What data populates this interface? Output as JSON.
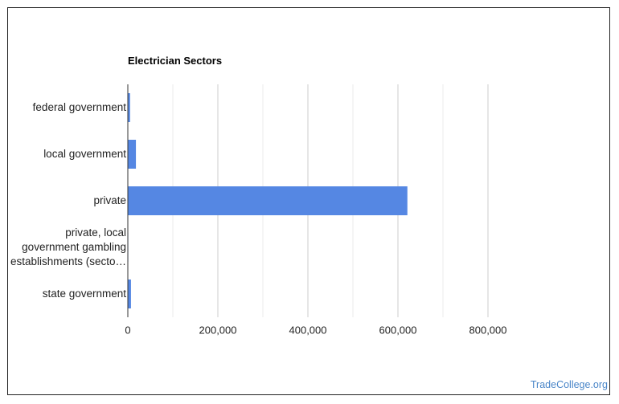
{
  "chart_data": {
    "type": "hbar",
    "title": "Electrician Sectors",
    "categories": [
      "federal government",
      "local government",
      "private",
      "private, local government gambling establishments (secto…",
      "state government"
    ],
    "values": [
      5000,
      18000,
      621000,
      1000,
      7000
    ],
    "color": "#5587e3",
    "xlim": [
      0,
      900000
    ],
    "xticks": [
      0,
      {
        "value": 200000,
        "label": "200,000"
      },
      {
        "value": 400000,
        "label": "400,000"
      },
      {
        "value": 600000,
        "label": "600,000"
      },
      {
        "value": 800000,
        "label": "800,000"
      }
    ],
    "minor_xticks": [
      100000,
      300000,
      500000,
      700000
    ],
    "grid": true,
    "source": "TradeCollege.org"
  }
}
